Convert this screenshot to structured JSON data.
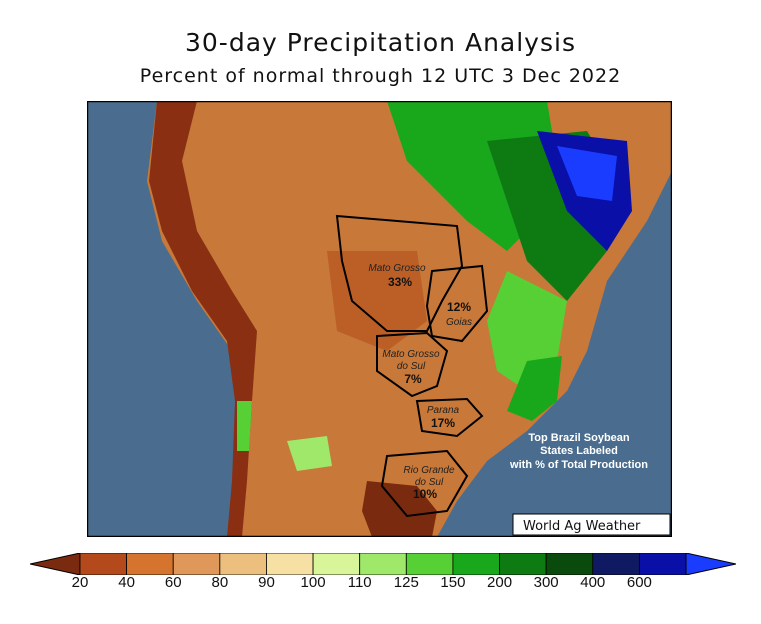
{
  "title": "30-day Precipitation Analysis",
  "subtitle": "Percent of normal through 12 UTC 3 Dec 2022",
  "legend": {
    "ticks": [
      "20",
      "40",
      "60",
      "80",
      "90",
      "100",
      "110",
      "125",
      "150",
      "200",
      "300",
      "400",
      "600"
    ],
    "colors": [
      "#7a2a0e",
      "#b44a1c",
      "#d4742f",
      "#e0975a",
      "#edbf7e",
      "#f6e0a4",
      "#d9f59a",
      "#9fe86a",
      "#56d034",
      "#19a81c",
      "#0d7a12",
      "#0a4a0c",
      "#101a62",
      "#0a0fa8",
      "#1a3cff"
    ]
  },
  "map": {
    "ocean_color": "#4a6d8f",
    "states": [
      {
        "name_lines": [
          "Mato Grosso"
        ],
        "percent": "33%"
      },
      {
        "name_lines": [
          "Goias"
        ],
        "percent": "12%"
      },
      {
        "name_lines": [
          "Mato Grosso",
          "do Sul"
        ],
        "percent": "7%"
      },
      {
        "name_lines": [
          "Parana"
        ],
        "percent": "17%"
      },
      {
        "name_lines": [
          "Rio Grande",
          "do Sul"
        ],
        "percent": "10%"
      }
    ],
    "note_lines": [
      "Top Brazil Soybean",
      "States Labeled",
      "with % of Total Production"
    ],
    "credit": "World Ag Weather"
  }
}
